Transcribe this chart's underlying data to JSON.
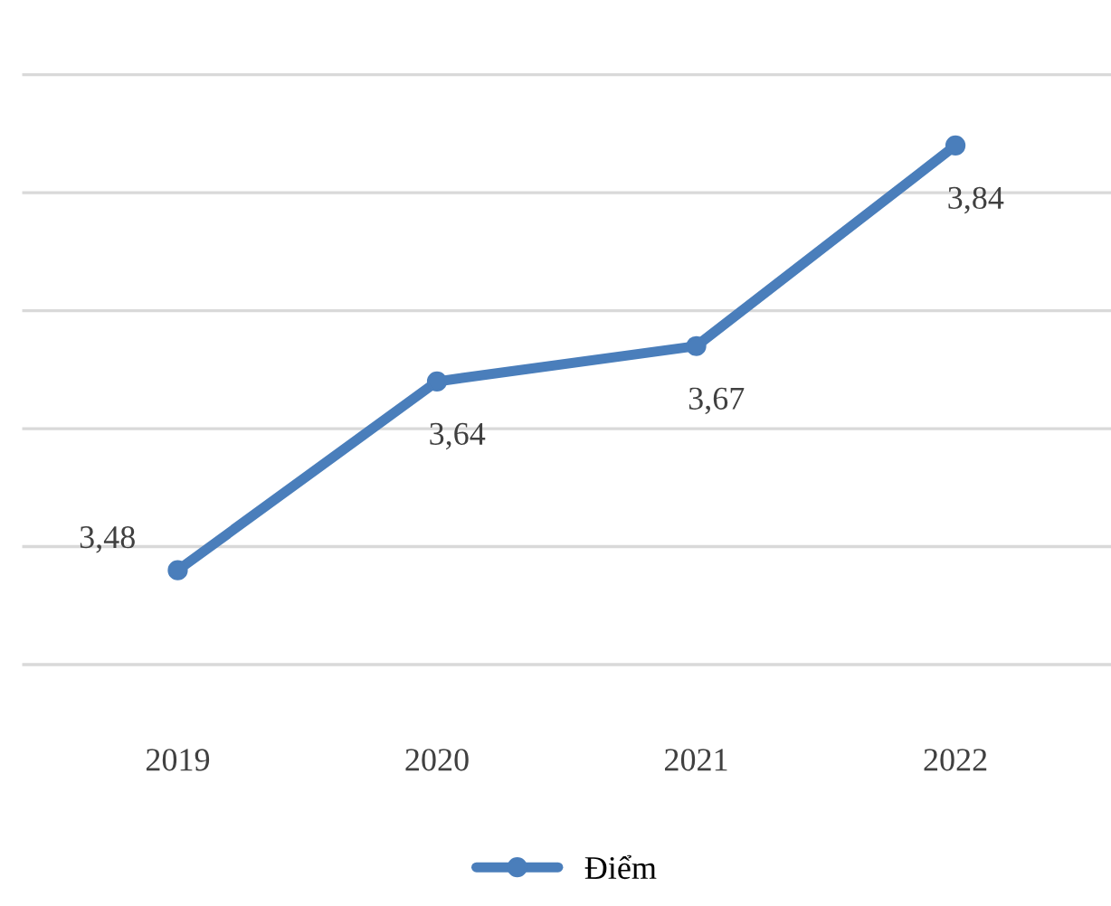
{
  "chart_data": {
    "type": "line",
    "categories": [
      "2019",
      "2020",
      "2021",
      "2022"
    ],
    "series": [
      {
        "name": "Điểm",
        "color": "#4a7ebb",
        "values": [
          3.48,
          3.64,
          3.67,
          3.84
        ],
        "value_labels": [
          "3,48",
          "3,64",
          "3,67",
          "3,84"
        ]
      }
    ],
    "grid": "y",
    "legend": "bottom",
    "marker": "circle",
    "line_style": "solid"
  }
}
